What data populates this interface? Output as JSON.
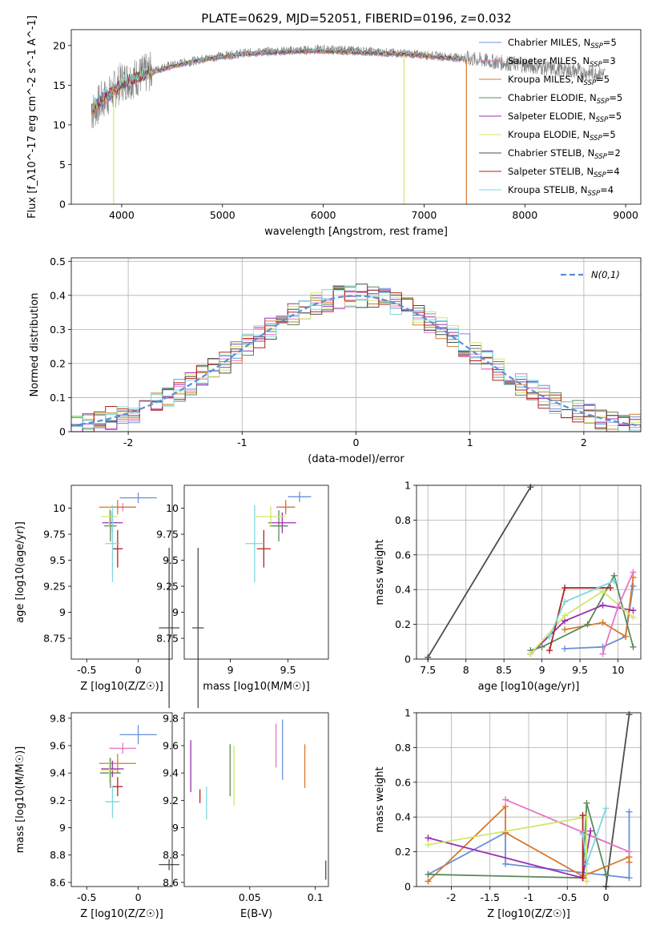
{
  "figure": {
    "title": "PLATE=0629, MJD=52051, FIBERID=0196, z=0.032"
  },
  "colors": {
    "Chabrier MILES": "#6a90d8",
    "Salpeter MILES": "#e377c2",
    "Kroupa MILES": "#d9782d",
    "Chabrier ELODIE": "#5b8a5b",
    "Salpeter ELODIE": "#9b30b0",
    "Kroupa ELODIE": "#d0e86a",
    "Chabrier STELIB": "#4d4d4d",
    "Salpeter STELIB": "#b22222",
    "Kroupa STELIB": "#7fd6de"
  },
  "chart_data": [
    {
      "id": "spectrum",
      "type": "line",
      "xlabel": "wavelength [Angstrom, rest frame]",
      "ylabel": "Flux [f_λ10^-17 erg cm^-2 s^-1 A^-1]",
      "xlim": [
        3500,
        9150
      ],
      "ylim": [
        0,
        22
      ],
      "xticks": [
        4000,
        5000,
        6000,
        7000,
        8000,
        9000
      ],
      "yticks": [
        0,
        5,
        10,
        15,
        20
      ],
      "observed_color": "#808080",
      "observed_x": [
        3700,
        3800,
        3900,
        4000,
        4100,
        4200,
        4300,
        4400,
        4500,
        4600,
        4700,
        4800,
        4900,
        5000,
        5200,
        5400,
        5600,
        5800,
        6000,
        6200,
        6400,
        6600,
        6800,
        7000,
        7200,
        7400,
        7600,
        7800,
        8000,
        8200,
        8400,
        8600,
        8800
      ],
      "observed_y": [
        11.5,
        13,
        14,
        15.5,
        15.8,
        16.3,
        16.7,
        17.2,
        17.5,
        17.8,
        18,
        18.3,
        18.5,
        18.7,
        19,
        19.2,
        19.3,
        19.4,
        19.5,
        19.4,
        19.3,
        19.1,
        19,
        18.8,
        18.6,
        18.4,
        18.1,
        17.8,
        17.5,
        17.2,
        16.9,
        16.6,
        16.4
      ],
      "model_x": [
        3700,
        3800,
        3900,
        4000,
        4100,
        4200,
        4300,
        4400,
        4500,
        4600,
        4700,
        4800,
        4900,
        5000,
        5200,
        5400,
        5600,
        5800,
        6000,
        6200,
        6400,
        6600,
        6800,
        7000,
        7200,
        7400
      ],
      "model_y": [
        12,
        13.2,
        14,
        15.2,
        15.7,
        16.2,
        16.6,
        17,
        17.4,
        17.7,
        18,
        18.2,
        18.4,
        18.6,
        18.9,
        19.1,
        19.2,
        19.3,
        19.3,
        19.2,
        19.1,
        19,
        18.9,
        18.7,
        18.5,
        18.3
      ],
      "model_dropouts": [
        {
          "series": "Kroupa ELODIE",
          "x": 3920
        },
        {
          "series": "Kroupa ELODIE",
          "x": 6800
        },
        {
          "series": "Kroupa MILES",
          "x": 7420
        }
      ],
      "legend": [
        {
          "label": "Chabrier MILES, N",
          "sub": "SSP",
          "suffix": "=5",
          "series": "Chabrier MILES"
        },
        {
          "label": "Salpeter MILES, N",
          "sub": "SSP",
          "suffix": "=3",
          "series": "Salpeter MILES"
        },
        {
          "label": "Kroupa MILES, N",
          "sub": "SSP",
          "suffix": "=5",
          "series": "Kroupa MILES"
        },
        {
          "label": "Chabrier ELODIE, N",
          "sub": "SSP",
          "suffix": "=5",
          "series": "Chabrier ELODIE"
        },
        {
          "label": "Salpeter ELODIE, N",
          "sub": "SSP",
          "suffix": "=5",
          "series": "Salpeter ELODIE"
        },
        {
          "label": "Kroupa ELODIE, N",
          "sub": "SSP",
          "suffix": "=5",
          "series": "Kroupa ELODIE"
        },
        {
          "label": "Chabrier STELIB, N",
          "sub": "SSP",
          "suffix": "=2",
          "series": "Chabrier STELIB"
        },
        {
          "label": "Salpeter STELIB, N",
          "sub": "SSP",
          "suffix": "=4",
          "series": "Salpeter STELIB"
        },
        {
          "label": "Kroupa STELIB, N",
          "sub": "SSP",
          "suffix": "=4",
          "series": "Kroupa STELIB"
        }
      ]
    },
    {
      "id": "residuals",
      "type": "histogram",
      "xlabel": "(data-model)/error",
      "ylabel": "Normed distribution",
      "xlim": [
        -2.5,
        2.5
      ],
      "ylim": [
        0,
        0.51
      ],
      "xticks": [
        -2,
        -1,
        0,
        1,
        2
      ],
      "yticks": [
        0.0,
        0.1,
        0.2,
        0.3,
        0.4,
        0.5
      ],
      "grid": true,
      "bin_width": 0.1,
      "legend": [
        {
          "label": "N(0,1)",
          "style": "dashed",
          "color": "#5b8ed6"
        }
      ],
      "legend_position": "top-right"
    },
    {
      "id": "age-vs-Z",
      "type": "errorbar",
      "xlabel": "Z [log10(Z/Z☉)]",
      "ylabel": "age  [log10(age/yr)]",
      "xlim": [
        -0.65,
        0.33
      ],
      "ylim": [
        8.55,
        10.22
      ],
      "xticks": [
        -0.5,
        0.0
      ],
      "yticks": [
        8.75,
        9.0,
        9.25,
        9.5,
        9.75,
        10.0
      ],
      "points": [
        {
          "series": "Chabrier MILES",
          "x": 0.0,
          "xerr": 0.18,
          "y": 10.1,
          "yerr": 0.05
        },
        {
          "series": "Salpeter MILES",
          "x": -0.15,
          "xerr": 0.13,
          "y": 10.01,
          "yerr": 0.04
        },
        {
          "series": "Kroupa MILES",
          "x": -0.2,
          "xerr": 0.18,
          "y": 10.01,
          "yerr": 0.07
        },
        {
          "series": "Chabrier ELODIE",
          "x": -0.27,
          "xerr": 0.06,
          "y": 9.83,
          "yerr": 0.15
        },
        {
          "series": "Salpeter ELODIE",
          "x": -0.25,
          "xerr": 0.1,
          "y": 9.86,
          "yerr": 0.1
        },
        {
          "series": "Kroupa ELODIE",
          "x": -0.28,
          "xerr": 0.08,
          "y": 9.92,
          "yerr": 0.1
        },
        {
          "series": "Chabrier STELIB",
          "x": 0.3,
          "xerr": 0.1,
          "y": 8.85,
          "yerr": 0.77
        },
        {
          "series": "Salpeter STELIB",
          "x": -0.2,
          "xerr": 0.05,
          "y": 9.61,
          "yerr": 0.18
        },
        {
          "series": "Kroupa STELIB",
          "x": -0.25,
          "xerr": 0.07,
          "y": 9.66,
          "yerr": 0.37
        }
      ]
    },
    {
      "id": "age-vs-mass",
      "type": "errorbar",
      "xlabel": "mass [log10(M/M☉)]",
      "ylabel": "",
      "xlim": [
        8.6,
        9.85
      ],
      "ylim": [
        8.55,
        10.22
      ],
      "xticks": [
        9.0,
        9.5
      ],
      "yticks": [
        8.75,
        9.0,
        9.25,
        9.5,
        9.75,
        10.0
      ],
      "points": [
        {
          "series": "Chabrier MILES",
          "x": 9.6,
          "xerr": 0.1,
          "y": 10.11,
          "yerr": 0.05
        },
        {
          "series": "Salpeter MILES",
          "x": 9.48,
          "xerr": 0.08,
          "y": 10.01,
          "yerr": 0.04
        },
        {
          "series": "Kroupa MILES",
          "x": 9.48,
          "xerr": 0.08,
          "y": 10.01,
          "yerr": 0.07
        },
        {
          "series": "Chabrier ELODIE",
          "x": 9.42,
          "xerr": 0.08,
          "y": 9.83,
          "yerr": 0.15
        },
        {
          "series": "Salpeter ELODIE",
          "x": 9.45,
          "xerr": 0.12,
          "y": 9.86,
          "yerr": 0.1
        },
        {
          "series": "Kroupa ELODIE",
          "x": 9.35,
          "xerr": 0.13,
          "y": 9.92,
          "yerr": 0.1
        },
        {
          "series": "Chabrier STELIB",
          "x": 8.72,
          "xerr": 0.05,
          "y": 8.85,
          "yerr": 0.77
        },
        {
          "series": "Salpeter STELIB",
          "x": 9.29,
          "xerr": 0.06,
          "y": 9.61,
          "yerr": 0.18
        },
        {
          "series": "Kroupa STELIB",
          "x": 9.21,
          "xerr": 0.08,
          "y": 9.66,
          "yerr": 0.37
        }
      ]
    },
    {
      "id": "weight-vs-age",
      "type": "line",
      "xlabel": "age  [log10(age/yr)]",
      "ylabel": "mass weight",
      "xlim": [
        7.35,
        10.3
      ],
      "ylim": [
        0,
        1.0
      ],
      "xticks": [
        7.5,
        8.0,
        8.5,
        9.0,
        9.5,
        10.0
      ],
      "yticks": [
        0.0,
        0.2,
        0.4,
        0.6,
        0.8,
        1.0
      ],
      "grid": true,
      "series": [
        {
          "name": "Chabrier STELIB",
          "x": [
            7.5,
            8.85
          ],
          "y": [
            0.01,
            0.99
          ]
        },
        {
          "name": "Chabrier MILES",
          "x": [
            9.3,
            9.8,
            10.1,
            10.2
          ],
          "y": [
            0.06,
            0.07,
            0.13,
            0.42
          ]
        },
        {
          "name": "Kroupa MILES",
          "x": [
            9.3,
            9.8,
            10.1,
            10.2
          ],
          "y": [
            0.17,
            0.21,
            0.13,
            0.47
          ]
        },
        {
          "name": "Chabrier ELODIE",
          "x": [
            8.85,
            9.0,
            9.6,
            9.95,
            10.2
          ],
          "y": [
            0.05,
            0.07,
            0.2,
            0.48,
            0.07
          ]
        },
        {
          "name": "Salpeter ELODIE",
          "x": [
            8.85,
            9.3,
            9.8,
            10.2
          ],
          "y": [
            0.03,
            0.22,
            0.31,
            0.28
          ]
        },
        {
          "name": "Kroupa ELODIE",
          "x": [
            8.85,
            9.3,
            9.8,
            10.2
          ],
          "y": [
            0.03,
            0.25,
            0.39,
            0.24
          ]
        },
        {
          "name": "Salpeter STELIB",
          "x": [
            9.1,
            9.3,
            9.9
          ],
          "y": [
            0.05,
            0.41,
            0.41
          ]
        },
        {
          "name": "Kroupa STELIB",
          "x": [
            9.1,
            9.3,
            9.95
          ],
          "y": [
            0.13,
            0.33,
            0.45
          ]
        },
        {
          "name": "Salpeter MILES",
          "x": [
            9.8,
            10.0,
            10.2
          ],
          "y": [
            0.03,
            0.3,
            0.5
          ]
        }
      ]
    },
    {
      "id": "mass-vs-Z",
      "type": "errorbar",
      "xlabel": "Z [log10(Z/Z☉)]",
      "ylabel": "mass [log10(M/M☉)]",
      "xlim": [
        -0.65,
        0.33
      ],
      "ylim": [
        8.57,
        9.84
      ],
      "xticks": [
        -0.5,
        0.0
      ],
      "yticks": [
        8.6,
        8.8,
        9.0,
        9.2,
        9.4,
        9.6,
        9.8
      ],
      "points": [
        {
          "series": "Chabrier MILES",
          "x": 0.0,
          "xerr": 0.18,
          "y": 9.68,
          "yerr": 0.07
        },
        {
          "series": "Salpeter MILES",
          "x": -0.15,
          "xerr": 0.13,
          "y": 9.58,
          "yerr": 0.04
        },
        {
          "series": "Kroupa MILES",
          "x": -0.2,
          "xerr": 0.18,
          "y": 9.47,
          "yerr": 0.07
        },
        {
          "series": "Chabrier ELODIE",
          "x": -0.27,
          "xerr": 0.1,
          "y": 9.4,
          "yerr": 0.11
        },
        {
          "series": "Salpeter ELODIE",
          "x": -0.25,
          "xerr": 0.11,
          "y": 9.43,
          "yerr": 0.06
        },
        {
          "series": "Kroupa ELODIE",
          "x": -0.28,
          "xerr": 0.08,
          "y": 9.42,
          "yerr": 0.09
        },
        {
          "series": "Chabrier STELIB",
          "x": 0.3,
          "xerr": 0.1,
          "y": 8.73,
          "yerr": 0.04
        },
        {
          "series": "Salpeter STELIB",
          "x": -0.2,
          "xerr": 0.05,
          "y": 9.3,
          "yerr": 0.07
        },
        {
          "series": "Kroupa STELIB",
          "x": -0.25,
          "xerr": 0.07,
          "y": 9.19,
          "yerr": 0.12
        }
      ]
    },
    {
      "id": "mass-vs-ebv",
      "type": "errorbar",
      "xlabel": "E(B-V)",
      "ylabel": "",
      "xlim": [
        0.0,
        0.11
      ],
      "ylim": [
        8.57,
        9.84
      ],
      "xticks": [
        0.05,
        0.1
      ],
      "yticks": [
        8.6,
        8.8,
        9.0,
        9.2,
        9.4,
        9.6,
        9.8
      ],
      "points": [
        {
          "series": "Chabrier MILES",
          "x": 0.075,
          "y": 9.57,
          "yerr": 0.22
        },
        {
          "series": "Salpeter MILES",
          "x": 0.07,
          "y": 9.6,
          "yerr": 0.16
        },
        {
          "series": "Kroupa MILES",
          "x": 0.092,
          "y": 9.45,
          "yerr": 0.16
        },
        {
          "series": "Chabrier ELODIE",
          "x": 0.035,
          "y": 9.42,
          "yerr": 0.19
        },
        {
          "series": "Salpeter ELODIE",
          "x": 0.005,
          "y": 9.45,
          "yerr": 0.19
        },
        {
          "series": "Kroupa ELODIE",
          "x": 0.038,
          "y": 9.38,
          "yerr": 0.22
        },
        {
          "series": "Chabrier STELIB",
          "x": 0.108,
          "y": 8.69,
          "yerr": 0.07
        },
        {
          "series": "Salpeter STELIB",
          "x": 0.012,
          "y": 9.23,
          "yerr": 0.05
        },
        {
          "series": "Kroupa STELIB",
          "x": 0.017,
          "y": 9.18,
          "yerr": 0.12
        }
      ]
    },
    {
      "id": "weight-vs-Z",
      "type": "line",
      "xlabel": "Z [log10(Z/Z☉)]",
      "ylabel": "mass weight",
      "xlim": [
        -2.45,
        0.45
      ],
      "ylim": [
        0,
        1.0
      ],
      "xticks": [
        -2.0,
        -1.5,
        -1.0,
        -0.5,
        0.0
      ],
      "yticks": [
        0.0,
        0.2,
        0.4,
        0.6,
        0.8,
        1.0
      ],
      "grid": true,
      "series": [
        {
          "name": "Chabrier STELIB",
          "x": [
            0.0,
            0.3
          ],
          "y": [
            0.0,
            0.99
          ]
        },
        {
          "name": "Chabrier MILES",
          "x": [
            -2.3,
            -1.3,
            -1.3,
            -0.3,
            0.3,
            0.3
          ],
          "y": [
            0.07,
            0.31,
            0.13,
            0.08,
            0.05,
            0.43
          ]
        },
        {
          "name": "Kroupa MILES",
          "x": [
            -2.3,
            -1.3,
            -1.3,
            -0.3,
            0.3,
            0.3
          ],
          "y": [
            0.03,
            0.46,
            0.31,
            0.06,
            0.17,
            0.14
          ]
        },
        {
          "name": "Salpeter MILES",
          "x": [
            -1.3,
            0.3,
            -0.3
          ],
          "y": [
            0.5,
            0.2,
            0.31
          ]
        },
        {
          "name": "Chabrier ELODIE",
          "x": [
            -2.3,
            -0.3,
            -0.25,
            0.0
          ],
          "y": [
            0.07,
            0.05,
            0.48,
            0.07
          ]
        },
        {
          "name": "Salpeter ELODIE",
          "x": [
            -2.3,
            -0.3,
            -0.2
          ],
          "y": [
            0.28,
            0.05,
            0.32
          ]
        },
        {
          "name": "Kroupa ELODIE",
          "x": [
            -2.3,
            -0.25,
            -0.25
          ],
          "y": [
            0.24,
            0.4,
            0.03
          ]
        },
        {
          "name": "Salpeter STELIB",
          "x": [
            -0.3,
            -0.3,
            -0.3
          ],
          "y": [
            0.05,
            0.41,
            0.05
          ]
        },
        {
          "name": "Kroupa STELIB",
          "x": [
            -0.3,
            -0.25,
            0.0
          ],
          "y": [
            0.3,
            0.13,
            0.45
          ]
        }
      ]
    }
  ]
}
